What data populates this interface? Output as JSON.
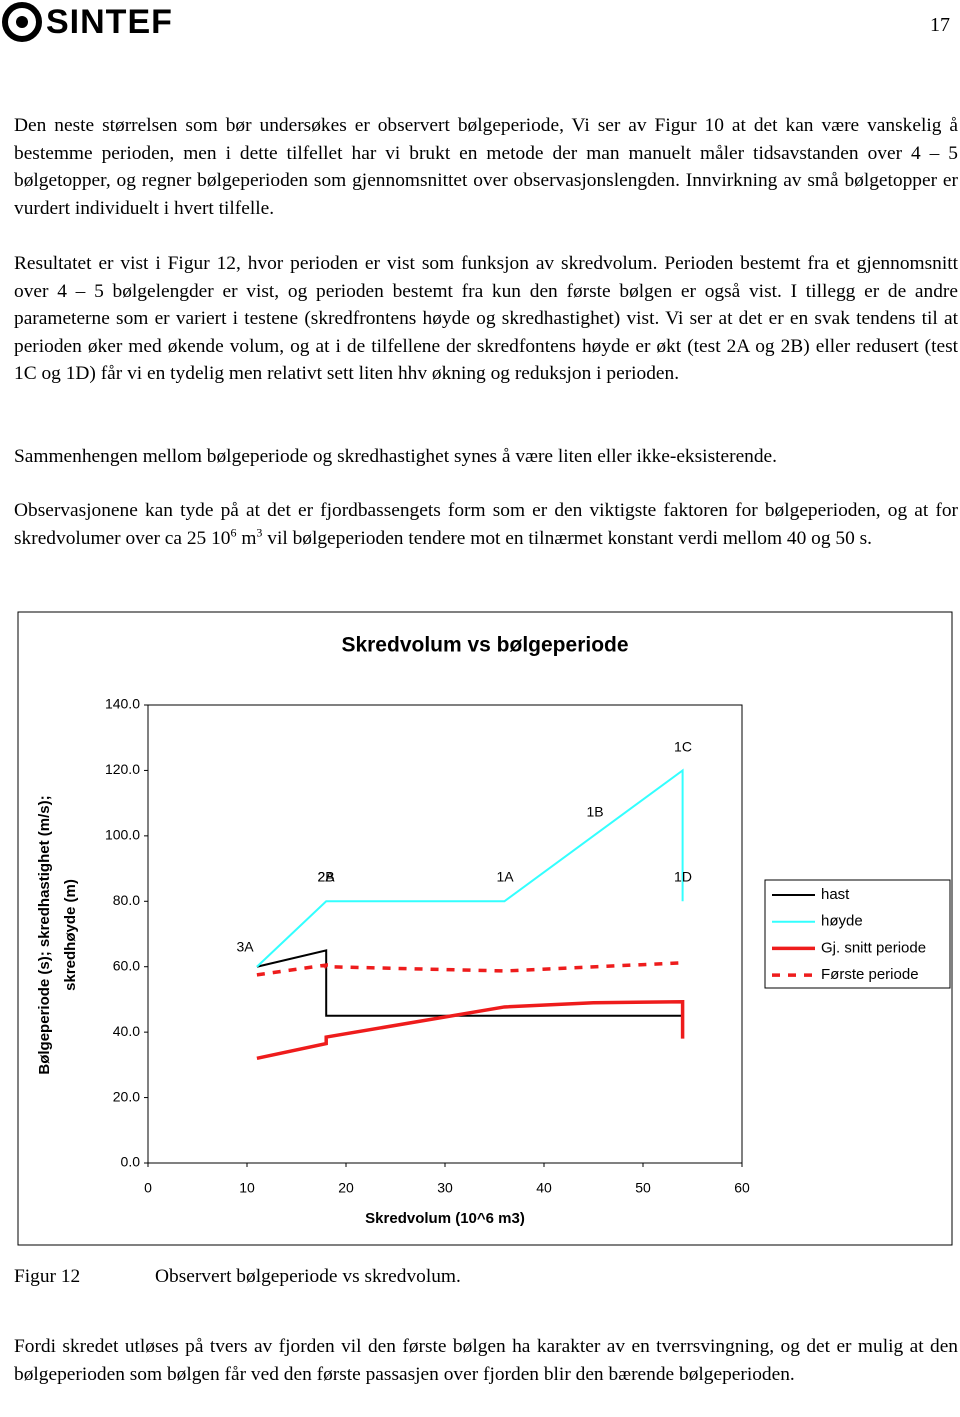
{
  "header": {
    "logo": "SINTEF",
    "page_number": "17"
  },
  "paragraphs": [
    "Den neste størrelsen som bør undersøkes er observert bølgeperiode, Vi ser av Figur 10 at det kan være vanskelig å bestemme perioden, men i dette tilfellet har vi brukt en metode der man manuelt måler tidsavstanden over 4 – 5 bølgetopper, og regner bølgeperioden som gjennomsnittet over observasjonslengden. Innvirkning av små bølgetopper er vurdert individuelt i hvert tilfelle.",
    "Resultatet er vist i Figur 12, hvor perioden er vist som funksjon av skredvolum. Perioden bestemt fra et gjennomsnitt over 4 – 5 bølgelengder er vist, og perioden bestemt fra kun den første bølgen er også vist. I tillegg er de andre parameterne som er variert i testene (skredfrontens høyde og skredhastighet) vist. Vi ser at det er en svak tendens til at perioden øker med økende volum, og at i de tilfellene der skredfontens høyde er økt (test 2A og 2B) eller redusert (test 1C og 1D) får vi en tydelig men relativt sett liten hhv økning og reduksjon i perioden.",
    "Sammenhengen mellom bølgeperiode og skredhastighet synes å være liten eller ikke-eksisterende."
  ],
  "paragraph_4": {
    "before": "Observasjonene kan tyde på at det er fjordbassengets form som er den viktigste faktoren for bølgeperioden, og at for skredvolumer over ca 25 10",
    "sup1": "6",
    "middle": " m",
    "sup2": "3",
    "after": " vil bølgeperioden tendere mot en tilnærmet konstant verdi mellom 40 og 50 s."
  },
  "chart_data": {
    "type": "line",
    "title": "Skredvolum vs bølgeperiode",
    "xlabel": "Skredvolum (10^6 m3)",
    "ylabel": [
      "Bølgeperiode (s); skredhastighet (m/s);",
      "skredhøyde (m)"
    ],
    "xlim": [
      0,
      60
    ],
    "xticks": [
      0,
      10,
      20,
      30,
      40,
      50,
      60
    ],
    "ylim": [
      0,
      140
    ],
    "yticks": [
      {
        "value": 0,
        "label": "0.0"
      },
      {
        "value": 20,
        "label": "20.0"
      },
      {
        "value": 40,
        "label": "40.0"
      },
      {
        "value": 60,
        "label": "60.0"
      },
      {
        "value": 80,
        "label": "80.0"
      },
      {
        "value": 100,
        "label": "100.0"
      },
      {
        "value": 120,
        "label": "120.0"
      },
      {
        "value": 140,
        "label": "140.0"
      }
    ],
    "series": [
      {
        "name": "hast",
        "color": "#000000",
        "x": [
          11,
          18,
          18,
          54
        ],
        "values": [
          60,
          65,
          45,
          45
        ]
      },
      {
        "name": "høyde",
        "color": "#33ffff",
        "x": [
          11,
          18,
          36,
          54,
          54
        ],
        "values": [
          60,
          80,
          80,
          120,
          80
        ]
      },
      {
        "name": "Gj. snitt periode",
        "color": "#ee1c1c",
        "x": [
          11,
          18,
          18,
          36,
          45,
          54,
          54
        ],
        "values": [
          32,
          36.5,
          38.5,
          47.7,
          49,
          49.3,
          38
        ]
      },
      {
        "name": "Første periode",
        "color": "#ee1c1c",
        "dashed": true,
        "x": [
          11,
          18,
          18,
          36,
          54
        ],
        "values": [
          57.5,
          60.5,
          60,
          58.7,
          61.2
        ]
      }
    ],
    "annotations": [
      "3A",
      "2A",
      "2B",
      "1A",
      "1B",
      "1C",
      "1D"
    ],
    "legend": "right"
  },
  "caption": {
    "label": "Figur 12",
    "text": "Observert bølgeperiode vs skredvolum."
  },
  "paragraph_5": "Fordi skredet utløses på tvers av fjorden vil den første bølgen ha karakter av en tverrsvingning, og det er mulig at den bølgeperioden som bølgen får ved den første passasjen over fjorden blir den bærende bølgeperioden."
}
